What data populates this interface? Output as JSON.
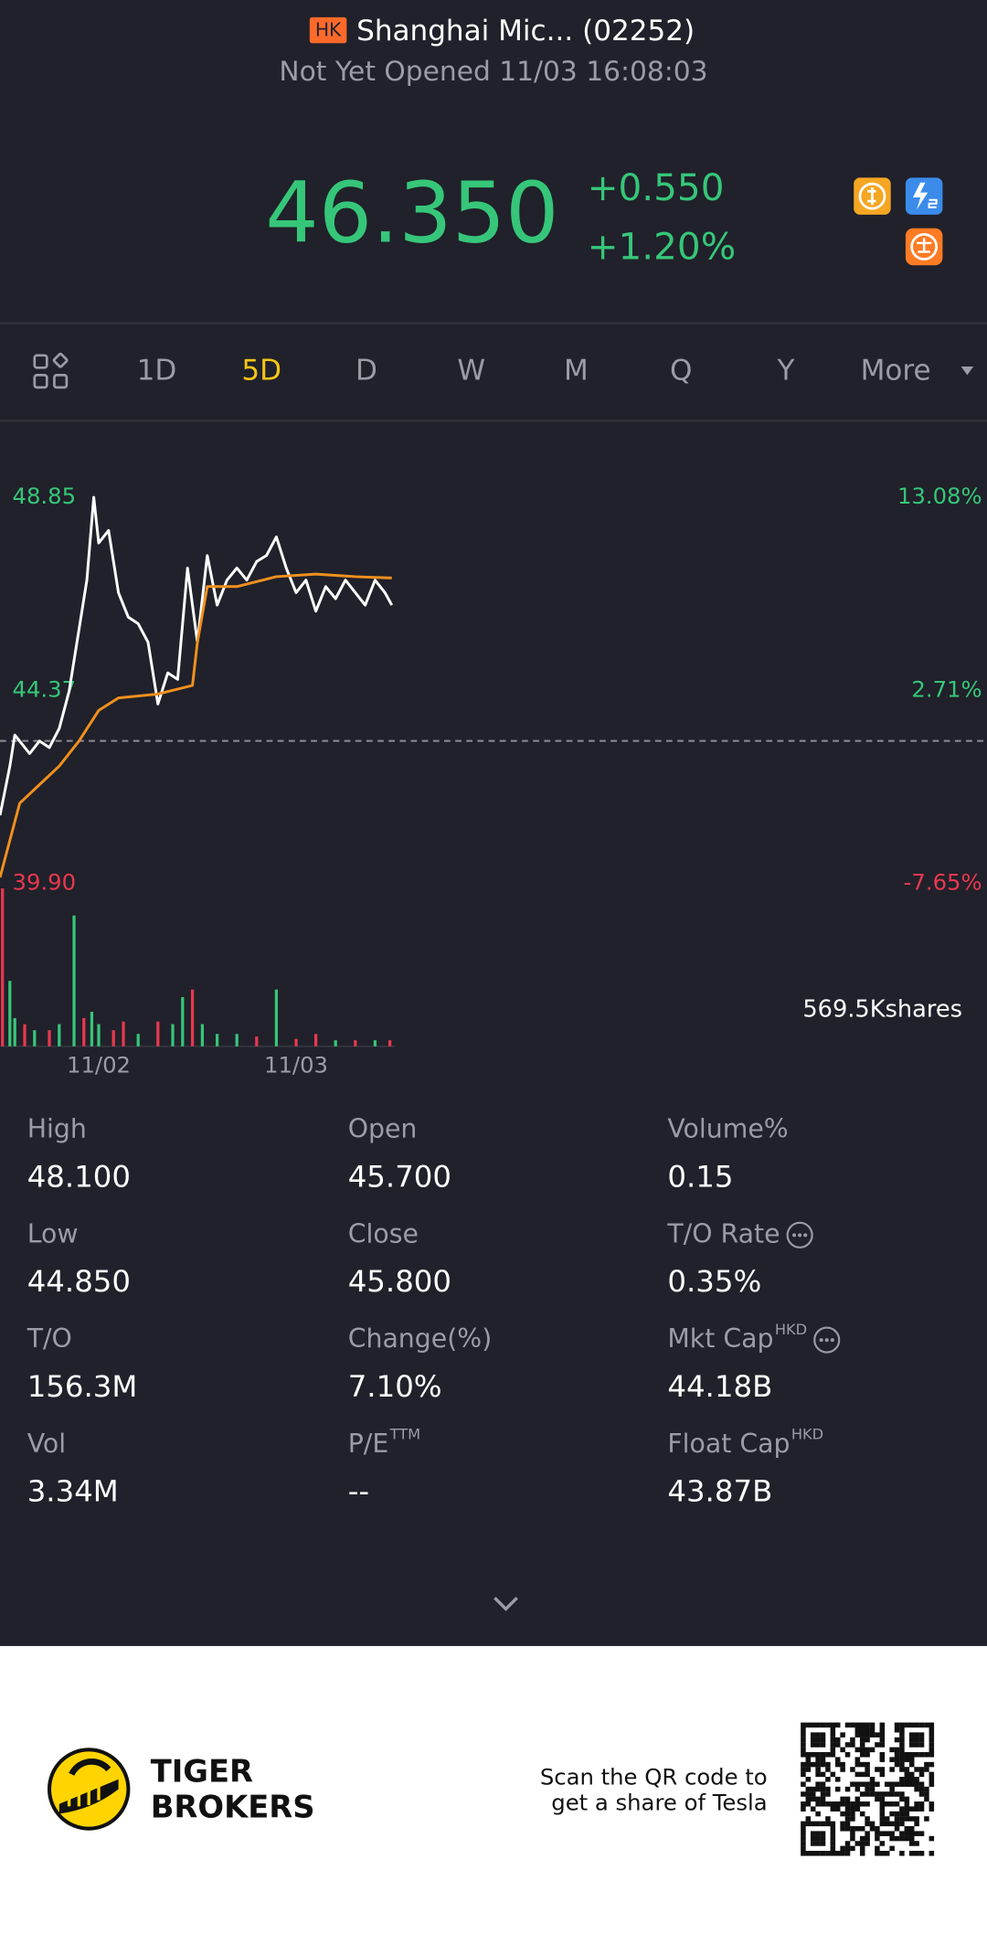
{
  "header": {
    "market": "HK",
    "name": "Shanghai Mic... (02252)",
    "status": "Not Yet Opened 11/03 16:08:03"
  },
  "quote": {
    "price": "46.350",
    "change": "+0.550",
    "change_pct": "+1.20%"
  },
  "tabs": [
    "1D",
    "5D",
    "D",
    "W",
    "M",
    "Q",
    "Y",
    "More"
  ],
  "active_tab": 1,
  "chart_data": {
    "type": "line",
    "xlim": [
      0,
      100
    ],
    "xticks": [
      {
        "value": 10,
        "label": "11/02"
      },
      {
        "value": 30,
        "label": "11/03"
      }
    ],
    "ylim": [
      39.9,
      48.85
    ],
    "yticks": [
      48.85,
      44.37,
      {
        "value": 39.9,
        "label": "39.90"
      }
    ],
    "y2lim": [
      -7.65,
      13.08
    ],
    "y2ticks": [
      {
        "value": 13.08,
        "label": "13.08%"
      },
      {
        "value": 2.71,
        "label": "2.71%"
      },
      {
        "value": -7.65,
        "label": "-7.65%"
      }
    ],
    "up_color": "#36c679",
    "down_color": "#e8384f",
    "series": [
      {
        "color": "#ffffff",
        "x": [
          0,
          1,
          1.5,
          3,
          4,
          5,
          6,
          7,
          8,
          8.8,
          9.5,
          10,
          11,
          12,
          13,
          14,
          15,
          16,
          17,
          18,
          19,
          20,
          21,
          22,
          23,
          24,
          25,
          26,
          27,
          28,
          29,
          30,
          31,
          32,
          33,
          34,
          35,
          36,
          37,
          38,
          39,
          39.7
        ],
        "values": [
          41.48,
          42.62,
          43.34,
          42.91,
          43.2,
          43.05,
          43.49,
          44.35,
          45.78,
          46.93,
          48.85,
          47.79,
          48.08,
          46.64,
          46.07,
          45.92,
          45.49,
          44.06,
          44.78,
          44.63,
          47.21,
          45.49,
          47.5,
          46.35,
          46.93,
          47.21,
          46.93,
          47.36,
          47.5,
          47.93,
          47.21,
          46.64,
          46.93,
          46.21,
          46.78,
          46.5,
          46.93,
          46.64,
          46.35,
          46.93,
          46.64,
          46.35
        ]
      },
      {
        "color": "#f0901e",
        "x": [
          0,
          2,
          4,
          6,
          8,
          10,
          12,
          16,
          19.5,
          20,
          21,
          24,
          28,
          32,
          36,
          39.7
        ],
        "values": [
          40.04,
          41.76,
          42.19,
          42.62,
          43.2,
          43.91,
          44.2,
          44.29,
          44.49,
          45.49,
          46.78,
          46.78,
          47.01,
          47.07,
          47.01,
          46.98
        ]
      }
    ],
    "volume": {
      "label": "569.5Kshares",
      "ylim": [
        0,
        569.5
      ],
      "x": [
        0.25,
        1,
        1.5,
        2.5,
        3.5,
        5,
        6,
        7.5,
        8.5,
        9.3,
        10,
        11.5,
        12.5,
        14,
        16,
        17.5,
        18.5,
        19.5,
        20.5,
        22,
        24,
        26,
        28,
        30,
        32,
        34,
        36,
        38,
        39.5
      ],
      "values": [
        548,
        227,
        98,
        77,
        56,
        56,
        77,
        454,
        98,
        120,
        77,
        56,
        86,
        43,
        86,
        77,
        171,
        197,
        77,
        43,
        43,
        34,
        197,
        26,
        43,
        21,
        21,
        21,
        21
      ],
      "colors": [
        "#e8384f",
        "#36c679",
        "#36c679",
        "#e8384f",
        "#36c679",
        "#e8384f",
        "#36c679",
        "#36c679",
        "#e8384f",
        "#36c679",
        "#36c679",
        "#e8384f",
        "#e8384f",
        "#36c679",
        "#e8384f",
        "#36c679",
        "#36c679",
        "#e8384f",
        "#36c679",
        "#36c679",
        "#36c679",
        "#e8384f",
        "#36c679",
        "#e8384f",
        "#e8384f",
        "#36c679",
        "#e8384f",
        "#36c679",
        "#e8384f"
      ]
    }
  },
  "stats": [
    {
      "label": "High",
      "value": "48.100"
    },
    {
      "label": "Open",
      "value": "45.700"
    },
    {
      "label": "Volume%",
      "value": "0.15"
    },
    {
      "label": "Low",
      "value": "44.850"
    },
    {
      "label": "Close",
      "value": "45.800"
    },
    {
      "label": "T/O Rate",
      "value": "0.35%",
      "info": true
    },
    {
      "label": "T/O",
      "value": "156.3M"
    },
    {
      "label": "Change(%)",
      "value": "7.10%"
    },
    {
      "label": "Mkt Cap",
      "sup": "HKD",
      "value": "44.18B",
      "info": true
    },
    {
      "label": "Vol",
      "value": "3.34M"
    },
    {
      "label": "P/E",
      "sup": "TTM",
      "value": "--"
    },
    {
      "label": "Float Cap",
      "sup": "HKD",
      "value": "43.87B"
    }
  ],
  "footer": {
    "brand": [
      "TIGER",
      "BROKERS"
    ],
    "cta": [
      "Scan the QR code to",
      "get a share of Tesla"
    ]
  }
}
